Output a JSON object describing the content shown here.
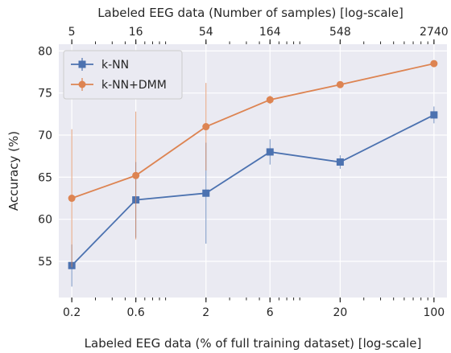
{
  "chart_data": {
    "type": "line",
    "title": "",
    "xlabel": "Labeled EEG data (% of full training dataset) [log-scale]",
    "xlabel_top": "Labeled EEG data (Number of samples) [log-scale]",
    "ylabel": "Accuracy (%)",
    "x_scale": "log",
    "x": [
      0.2,
      0.6,
      2,
      6,
      20,
      100
    ],
    "x_tick_labels": [
      "0.2",
      "0.6",
      "2",
      "6",
      "20",
      "100"
    ],
    "x_top_tick_labels": [
      "5",
      "16",
      "54",
      "164",
      "548",
      "2740"
    ],
    "xlim": [
      0.16,
      125
    ],
    "ylim": [
      50.7,
      80.8
    ],
    "y_ticks": [
      55,
      60,
      65,
      70,
      75,
      80
    ],
    "grid": true,
    "legend_position": "upper-left",
    "series": [
      {
        "name": "k-NN",
        "marker": "square",
        "color": "#4c72b0",
        "values": [
          54.5,
          62.3,
          63.1,
          68.0,
          66.8,
          72.4
        ],
        "error_low": [
          2.5,
          4.5,
          6.0,
          1.5,
          0.8,
          1.0
        ],
        "error_high": [
          2.5,
          4.5,
          6.0,
          1.5,
          0.8,
          1.0
        ]
      },
      {
        "name": "k-NN+DMM",
        "marker": "circle",
        "color": "#dd8452",
        "values": [
          62.5,
          65.2,
          71.0,
          74.2,
          76.0,
          78.5
        ],
        "error_low": [
          8.2,
          7.6,
          5.2,
          0.5,
          0.3,
          0.2
        ],
        "error_high": [
          8.2,
          7.6,
          5.2,
          0.5,
          0.3,
          0.2
        ]
      }
    ]
  }
}
